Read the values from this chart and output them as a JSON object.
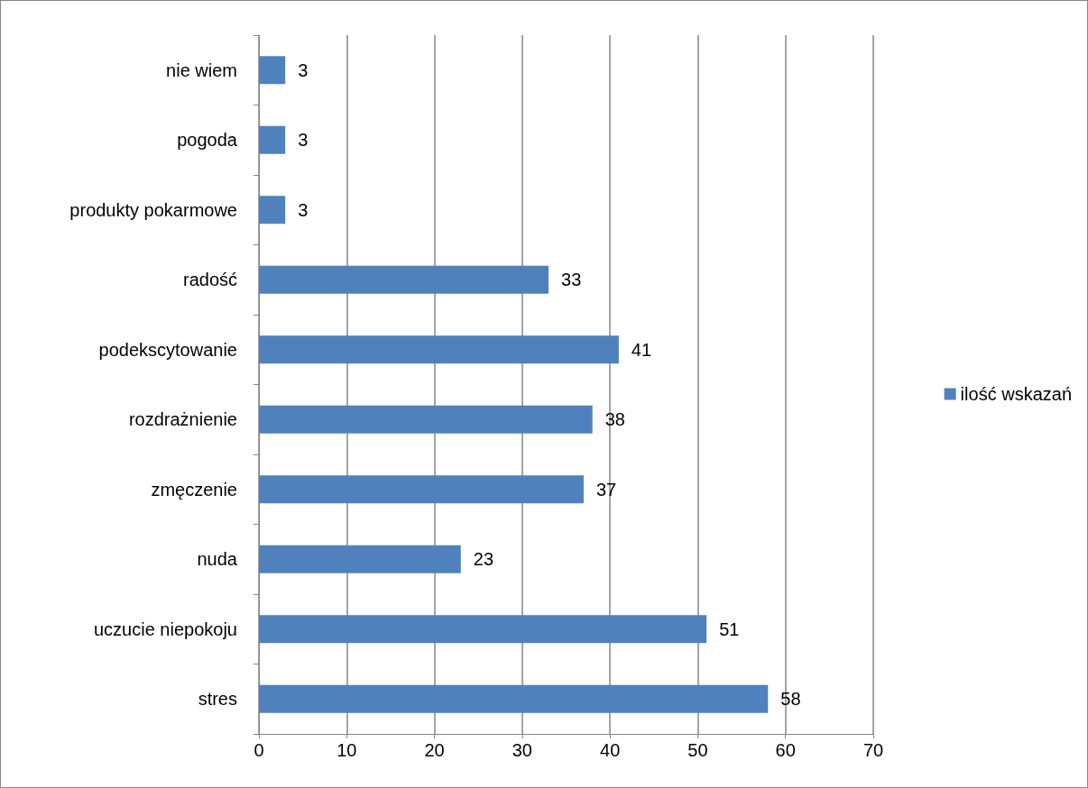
{
  "chart_data": {
    "type": "bar",
    "orientation": "horizontal",
    "categories": [
      "nie wiem",
      "pogoda",
      "produkty pokarmowe",
      "radość",
      "podekscytowanie",
      "rozdrażnienie",
      "zmęczenie",
      "nuda",
      "uczucie niepokoju",
      "stres"
    ],
    "series": [
      {
        "name": "ilość wskazań",
        "color": "#4f81bd",
        "values": [
          3,
          3,
          3,
          33,
          41,
          38,
          37,
          23,
          51,
          58
        ]
      }
    ],
    "xlim": [
      0,
      70
    ],
    "xticks": [
      0,
      10,
      20,
      30,
      40,
      50,
      60,
      70
    ],
    "grid": "x",
    "legend": "right",
    "data_labels": true
  }
}
